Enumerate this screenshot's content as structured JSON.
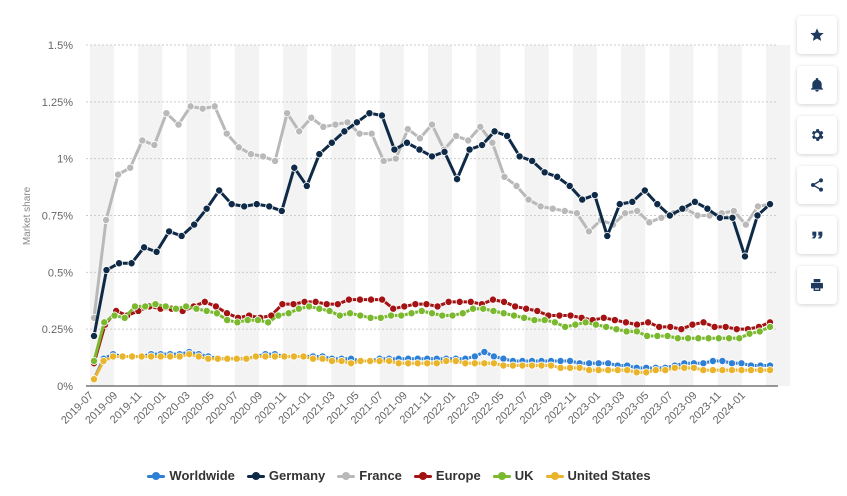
{
  "chart_data": {
    "type": "line",
    "ylabel": "Market share",
    "y_ticks": [
      "0%",
      "0.25%",
      "0.5%",
      "0.75%",
      "1%",
      "1.25%",
      "1.5%"
    ],
    "ylim": [
      0,
      1.5
    ],
    "grid": true,
    "legend_position": "bottom",
    "x_tick_labels": [
      "2019-07",
      "2019-09",
      "2019-11",
      "2020-01",
      "2020-03",
      "2020-05",
      "2020-07",
      "2020-09",
      "2020-11",
      "2021-01",
      "2021-03",
      "2021-05",
      "2021-07",
      "2021-09",
      "2021-11",
      "2022-01",
      "2022-03",
      "2022-05",
      "2022-07",
      "2022-09",
      "2022-11",
      "2023-01",
      "2023-03",
      "2023-05",
      "2023-07",
      "2023-09",
      "2023-11",
      "2024-01"
    ],
    "series": [
      {
        "name": "Worldwide",
        "color": "#2e7fd6",
        "values": [
          0.03,
          0.12,
          0.14,
          0.13,
          0.13,
          0.13,
          0.14,
          0.14,
          0.14,
          0.14,
          0.15,
          0.14,
          0.13,
          0.12,
          0.12,
          0.12,
          0.12,
          0.13,
          0.14,
          0.14,
          0.13,
          0.13,
          0.13,
          0.13,
          0.13,
          0.12,
          0.12,
          0.12,
          0.11,
          0.11,
          0.12,
          0.12,
          0.12,
          0.12,
          0.12,
          0.12,
          0.12,
          0.12,
          0.12,
          0.12,
          0.13,
          0.15,
          0.13,
          0.12,
          0.11,
          0.11,
          0.11,
          0.11,
          0.11,
          0.11,
          0.11,
          0.1,
          0.1,
          0.1,
          0.1,
          0.09,
          0.09,
          0.08,
          0.08,
          0.08,
          0.08,
          0.09,
          0.1,
          0.1,
          0.1,
          0.11,
          0.11,
          0.1,
          0.1,
          0.09,
          0.09,
          0.09
        ]
      },
      {
        "name": "Germany",
        "color": "#0e2a47",
        "values": [
          0.22,
          0.51,
          0.54,
          0.54,
          0.61,
          0.59,
          0.68,
          0.66,
          0.71,
          0.78,
          0.86,
          0.8,
          0.79,
          0.8,
          0.79,
          0.77,
          0.96,
          0.88,
          1.02,
          1.07,
          1.12,
          1.16,
          1.2,
          1.19,
          1.04,
          1.07,
          1.04,
          1.01,
          1.03,
          0.91,
          1.04,
          1.06,
          1.12,
          1.1,
          1.01,
          0.99,
          0.94,
          0.92,
          0.88,
          0.82,
          0.84,
          0.66,
          0.8,
          0.81,
          0.86,
          0.8,
          0.75,
          0.78,
          0.81,
          0.78,
          0.74,
          0.74,
          0.57,
          0.75,
          0.8
        ]
      },
      {
        "name": "France",
        "color": "#b9b9b9",
        "values": [
          0.3,
          0.73,
          0.93,
          0.96,
          1.08,
          1.06,
          1.2,
          1.15,
          1.23,
          1.22,
          1.23,
          1.11,
          1.05,
          1.02,
          1.01,
          0.99,
          1.2,
          1.12,
          1.18,
          1.14,
          1.15,
          1.16,
          1.11,
          1.11,
          0.99,
          1.0,
          1.13,
          1.09,
          1.15,
          1.04,
          1.1,
          1.08,
          1.14,
          1.07,
          0.92,
          0.88,
          0.82,
          0.79,
          0.78,
          0.77,
          0.76,
          0.68,
          0.73,
          0.71,
          0.76,
          0.77,
          0.72,
          0.74,
          0.76,
          0.78,
          0.75,
          0.75,
          0.76,
          0.77,
          0.71,
          0.79,
          0.8
        ]
      },
      {
        "name": "Europe",
        "color": "#a31313",
        "values": [
          0.1,
          0.27,
          0.33,
          0.31,
          0.33,
          0.35,
          0.34,
          0.34,
          0.33,
          0.35,
          0.37,
          0.35,
          0.32,
          0.3,
          0.31,
          0.3,
          0.31,
          0.36,
          0.36,
          0.37,
          0.37,
          0.36,
          0.36,
          0.38,
          0.38,
          0.38,
          0.38,
          0.34,
          0.35,
          0.36,
          0.36,
          0.35,
          0.37,
          0.37,
          0.37,
          0.36,
          0.38,
          0.37,
          0.35,
          0.34,
          0.33,
          0.31,
          0.31,
          0.31,
          0.3,
          0.29,
          0.3,
          0.29,
          0.28,
          0.27,
          0.28,
          0.26,
          0.26,
          0.25,
          0.27,
          0.28,
          0.26,
          0.26,
          0.25,
          0.25,
          0.26,
          0.28
        ]
      },
      {
        "name": "UK",
        "color": "#7ab82e",
        "values": [
          0.11,
          0.28,
          0.31,
          0.3,
          0.35,
          0.35,
          0.36,
          0.35,
          0.34,
          0.35,
          0.34,
          0.33,
          0.32,
          0.29,
          0.28,
          0.29,
          0.29,
          0.28,
          0.31,
          0.32,
          0.34,
          0.35,
          0.34,
          0.33,
          0.31,
          0.32,
          0.31,
          0.3,
          0.3,
          0.31,
          0.31,
          0.32,
          0.33,
          0.32,
          0.31,
          0.31,
          0.32,
          0.34,
          0.34,
          0.33,
          0.32,
          0.31,
          0.3,
          0.29,
          0.29,
          0.28,
          0.26,
          0.27,
          0.28,
          0.27,
          0.26,
          0.25,
          0.24,
          0.24,
          0.22,
          0.22,
          0.22,
          0.21,
          0.21,
          0.21,
          0.21,
          0.21,
          0.21,
          0.21,
          0.23,
          0.24,
          0.26
        ]
      },
      {
        "name": "United States",
        "color": "#eab42a",
        "values": [
          0.03,
          0.11,
          0.13,
          0.13,
          0.13,
          0.13,
          0.13,
          0.13,
          0.13,
          0.13,
          0.14,
          0.13,
          0.12,
          0.12,
          0.12,
          0.12,
          0.12,
          0.13,
          0.13,
          0.13,
          0.13,
          0.13,
          0.13,
          0.12,
          0.12,
          0.11,
          0.11,
          0.1,
          0.11,
          0.11,
          0.11,
          0.11,
          0.1,
          0.1,
          0.1,
          0.1,
          0.1,
          0.11,
          0.11,
          0.1,
          0.1,
          0.1,
          0.1,
          0.09,
          0.09,
          0.09,
          0.09,
          0.09,
          0.09,
          0.08,
          0.08,
          0.08,
          0.07,
          0.07,
          0.07,
          0.07,
          0.07,
          0.06,
          0.06,
          0.07,
          0.07,
          0.08,
          0.08,
          0.08,
          0.07,
          0.07,
          0.07,
          0.07,
          0.07,
          0.07,
          0.07,
          0.07
        ]
      }
    ]
  },
  "side_panel": [
    {
      "icon": "star-icon"
    },
    {
      "icon": "bell-icon"
    },
    {
      "icon": "gear-icon"
    },
    {
      "icon": "share-icon"
    },
    {
      "icon": "quote-icon"
    },
    {
      "icon": "print-icon"
    }
  ],
  "colors": {
    "icon": "#1f3a5f",
    "grid": "#cccccc",
    "band": "#f3f3f3"
  }
}
